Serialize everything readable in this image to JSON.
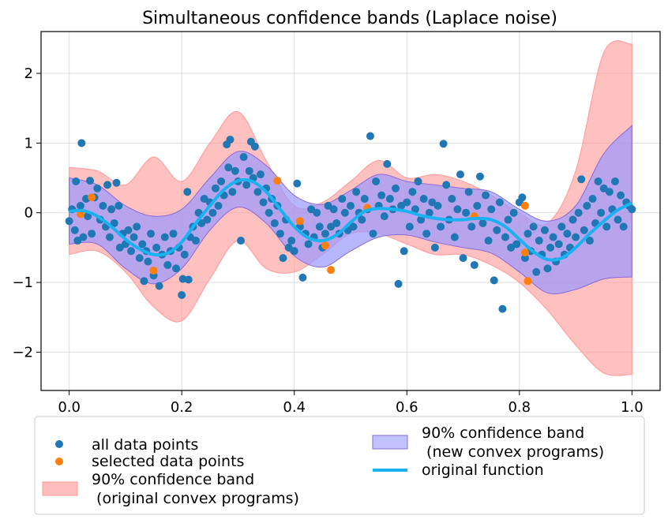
{
  "chart_data": {
    "type": "scatter",
    "title": "Simultaneous confidence bands (Laplace noise)",
    "xlabel": "",
    "ylabel": "",
    "xlim": [
      -0.05,
      1.05
    ],
    "ylim": [
      -2.55,
      2.6
    ],
    "x_ticks": [
      0.0,
      0.2,
      0.4,
      0.6,
      0.8,
      1.0
    ],
    "x_tick_labels": [
      "0.0",
      "0.2",
      "0.4",
      "0.6",
      "0.8",
      "1.0"
    ],
    "y_ticks": [
      -2,
      -1,
      0,
      1,
      2
    ],
    "y_tick_labels": [
      "−2",
      "−1",
      "0",
      "1",
      "2"
    ],
    "grid": true,
    "legend_position": "below",
    "colors": {
      "all_points": "#1f77b4",
      "selected_points": "#ff7f0e",
      "band_original": "#ff9999",
      "band_new": "#9999ff",
      "function": "#1ab2f0"
    },
    "legend": {
      "all_points": "all data points",
      "selected_points": "selected data points",
      "band_original_line1": "90% confidence band",
      "band_original_line2": " (original convex programs)",
      "band_new_line1": "90% confidence band",
      "band_new_line2": " (new convex programs)",
      "function": "original function"
    },
    "series": [
      {
        "name": "original function",
        "x": [
          0.0,
          0.025,
          0.05,
          0.075,
          0.1,
          0.125,
          0.15,
          0.175,
          0.2,
          0.225,
          0.25,
          0.275,
          0.3,
          0.325,
          0.35,
          0.375,
          0.4,
          0.425,
          0.45,
          0.475,
          0.5,
          0.525,
          0.55,
          0.575,
          0.6,
          0.625,
          0.65,
          0.675,
          0.7,
          0.725,
          0.75,
          0.775,
          0.8,
          0.825,
          0.85,
          0.875,
          0.9,
          0.925,
          0.95,
          0.975,
          1.0
        ],
        "y": [
          0.02,
          0.03,
          -0.05,
          -0.2,
          -0.38,
          -0.52,
          -0.6,
          -0.58,
          -0.42,
          -0.15,
          0.1,
          0.33,
          0.46,
          0.45,
          0.3,
          0.05,
          -0.2,
          -0.36,
          -0.4,
          -0.32,
          -0.14,
          0.02,
          0.06,
          0.05,
          0.02,
          -0.04,
          -0.08,
          -0.1,
          -0.1,
          -0.08,
          -0.1,
          -0.2,
          -0.38,
          -0.56,
          -0.67,
          -0.65,
          -0.5,
          -0.3,
          -0.12,
          0.04,
          0.14
        ]
      },
      {
        "name": "90% confidence band (original convex programs)",
        "x": [
          0.0,
          0.05,
          0.1,
          0.15,
          0.2,
          0.25,
          0.3,
          0.35,
          0.4,
          0.45,
          0.5,
          0.55,
          0.6,
          0.65,
          0.7,
          0.75,
          0.8,
          0.85,
          0.9,
          0.95,
          1.0
        ],
        "upper": [
          0.65,
          0.6,
          0.4,
          0.8,
          0.45,
          1.0,
          1.45,
          0.75,
          0.1,
          0.15,
          0.45,
          0.75,
          0.5,
          0.55,
          0.45,
          0.25,
          0.0,
          -0.15,
          0.6,
          2.3,
          2.42
        ],
        "lower": [
          -0.6,
          -0.55,
          -0.85,
          -1.35,
          -1.55,
          -0.95,
          -0.4,
          -0.8,
          -0.85,
          -0.6,
          -0.3,
          -0.3,
          -0.45,
          -0.6,
          -0.6,
          -0.75,
          -1.0,
          -1.4,
          -1.9,
          -2.3,
          -2.32
        ]
      },
      {
        "name": "90% confidence band (new convex programs)",
        "x": [
          0.0,
          0.05,
          0.1,
          0.15,
          0.2,
          0.25,
          0.3,
          0.35,
          0.4,
          0.45,
          0.5,
          0.55,
          0.6,
          0.65,
          0.7,
          0.75,
          0.8,
          0.85,
          0.9,
          0.95,
          1.0
        ],
        "upper": [
          0.5,
          0.4,
          0.1,
          -0.05,
          0.05,
          0.5,
          0.88,
          0.68,
          0.25,
          0.12,
          0.32,
          0.55,
          0.45,
          0.4,
          0.35,
          0.3,
          0.05,
          -0.12,
          0.1,
          0.85,
          1.25
        ],
        "lower": [
          -0.45,
          -0.45,
          -0.8,
          -1.02,
          -0.8,
          -0.25,
          0.08,
          -0.15,
          -0.62,
          -0.78,
          -0.55,
          -0.35,
          -0.32,
          -0.42,
          -0.5,
          -0.58,
          -0.85,
          -1.15,
          -1.1,
          -0.95,
          -0.92
        ]
      }
    ],
    "points_all": [
      [
        0.0,
        -0.12
      ],
      [
        0.005,
        0.05
      ],
      [
        0.01,
        -0.25
      ],
      [
        0.012,
        0.45
      ],
      [
        0.015,
        -0.4
      ],
      [
        0.02,
        0.1
      ],
      [
        0.022,
        1.0
      ],
      [
        0.025,
        -0.35
      ],
      [
        0.03,
        0.2
      ],
      [
        0.033,
        -0.05
      ],
      [
        0.037,
        0.46
      ],
      [
        0.04,
        -0.3
      ],
      [
        0.045,
        0.22
      ],
      [
        0.05,
        0.35
      ],
      [
        0.055,
        -0.1
      ],
      [
        0.06,
        0.1
      ],
      [
        0.065,
        -0.2
      ],
      [
        0.068,
        0.4
      ],
      [
        0.072,
        -0.35
      ],
      [
        0.075,
        0.05
      ],
      [
        0.08,
        -0.15
      ],
      [
        0.084,
        0.43
      ],
      [
        0.088,
        0.1
      ],
      [
        0.09,
        -0.5
      ],
      [
        0.095,
        -0.3
      ],
      [
        0.1,
        -0.45
      ],
      [
        0.105,
        -0.25
      ],
      [
        0.11,
        -0.55
      ],
      [
        0.115,
        -0.35
      ],
      [
        0.12,
        -0.2
      ],
      [
        0.125,
        -0.65
      ],
      [
        0.13,
        -0.45
      ],
      [
        0.133,
        -0.98
      ],
      [
        0.137,
        -0.55
      ],
      [
        0.14,
        -0.7
      ],
      [
        0.145,
        -0.3
      ],
      [
        0.15,
        -0.9
      ],
      [
        0.155,
        -0.5
      ],
      [
        0.16,
        -1.05
      ],
      [
        0.165,
        -0.6
      ],
      [
        0.17,
        -0.35
      ],
      [
        0.175,
        -0.75
      ],
      [
        0.18,
        -0.55
      ],
      [
        0.185,
        -0.3
      ],
      [
        0.19,
        -0.8
      ],
      [
        0.195,
        -0.5
      ],
      [
        0.2,
        -1.18
      ],
      [
        0.202,
        -0.95
      ],
      [
        0.205,
        -0.6
      ],
      [
        0.21,
        0.3
      ],
      [
        0.212,
        -0.96
      ],
      [
        0.215,
        -0.35
      ],
      [
        0.22,
        -0.2
      ],
      [
        0.225,
        -0.4
      ],
      [
        0.23,
        0.0
      ],
      [
        0.235,
        -0.15
      ],
      [
        0.24,
        0.2
      ],
      [
        0.245,
        -0.1
      ],
      [
        0.25,
        0.15
      ],
      [
        0.255,
        0.0
      ],
      [
        0.26,
        0.35
      ],
      [
        0.265,
        0.1
      ],
      [
        0.27,
        0.45
      ],
      [
        0.275,
        0.25
      ],
      [
        0.28,
        0.98
      ],
      [
        0.283,
        0.65
      ],
      [
        0.286,
        1.05
      ],
      [
        0.29,
        0.3
      ],
      [
        0.295,
        0.6
      ],
      [
        0.3,
        0.45
      ],
      [
        0.305,
        -0.4
      ],
      [
        0.31,
        0.8
      ],
      [
        0.315,
        0.4
      ],
      [
        0.32,
        0.6
      ],
      [
        0.323,
        1.02
      ],
      [
        0.327,
        0.5
      ],
      [
        0.33,
        0.95
      ],
      [
        0.335,
        0.3
      ],
      [
        0.34,
        0.55
      ],
      [
        0.345,
        0.15
      ],
      [
        0.35,
        0.35
      ],
      [
        0.355,
        0.0
      ],
      [
        0.36,
        0.2
      ],
      [
        0.365,
        -0.15
      ],
      [
        0.37,
        0.1
      ],
      [
        0.375,
        -0.3
      ],
      [
        0.38,
        -0.65
      ],
      [
        0.385,
        -0.1
      ],
      [
        0.39,
        -0.5
      ],
      [
        0.395,
        -0.4
      ],
      [
        0.4,
        -0.55
      ],
      [
        0.405,
        0.42
      ],
      [
        0.41,
        -0.2
      ],
      [
        0.415,
        -0.93
      ],
      [
        0.42,
        -0.3
      ],
      [
        0.425,
        -0.45
      ],
      [
        0.43,
        0.05
      ],
      [
        0.435,
        -0.35
      ],
      [
        0.44,
        0.0
      ],
      [
        0.445,
        -0.2
      ],
      [
        0.45,
        -0.5
      ],
      [
        0.455,
        -0.3
      ],
      [
        0.46,
        0.1
      ],
      [
        0.465,
        -0.2
      ],
      [
        0.47,
        0.05
      ],
      [
        0.475,
        -0.15
      ],
      [
        0.48,
        -0.3
      ],
      [
        0.485,
        0.2
      ],
      [
        0.49,
        0.0
      ],
      [
        0.495,
        -0.25
      ],
      [
        0.5,
        0.1
      ],
      [
        0.505,
        -0.2
      ],
      [
        0.51,
        0.3
      ],
      [
        0.515,
        0.0
      ],
      [
        0.52,
        -0.1
      ],
      [
        0.525,
        0.2
      ],
      [
        0.53,
        0.05
      ],
      [
        0.535,
        1.1
      ],
      [
        0.54,
        -0.3
      ],
      [
        0.545,
        0.45
      ],
      [
        0.55,
        0.1
      ],
      [
        0.555,
        0.25
      ],
      [
        0.56,
        -0.05
      ],
      [
        0.565,
        0.7
      ],
      [
        0.57,
        0.2
      ],
      [
        0.575,
        0.05
      ],
      [
        0.58,
        0.35
      ],
      [
        0.585,
        -1.02
      ],
      [
        0.59,
        0.1
      ],
      [
        0.595,
        -0.55
      ],
      [
        0.6,
        0.15
      ],
      [
        0.605,
        -0.2
      ],
      [
        0.61,
        0.3
      ],
      [
        0.615,
        0.05
      ],
      [
        0.62,
        0.45
      ],
      [
        0.625,
        -0.1
      ],
      [
        0.63,
        0.2
      ],
      [
        0.635,
        -0.3
      ],
      [
        0.64,
        0.0
      ],
      [
        0.645,
        0.15
      ],
      [
        0.65,
        -0.5
      ],
      [
        0.655,
        0.1
      ],
      [
        0.66,
        -0.2
      ],
      [
        0.665,
        0.99
      ],
      [
        0.67,
        0.4
      ],
      [
        0.675,
        -0.1
      ],
      [
        0.68,
        0.2
      ],
      [
        0.685,
        -0.35
      ],
      [
        0.69,
        0.05
      ],
      [
        0.695,
        0.55
      ],
      [
        0.7,
        -0.65
      ],
      [
        0.705,
        0.0
      ],
      [
        0.71,
        0.3
      ],
      [
        0.715,
        -0.2
      ],
      [
        0.72,
        -0.75
      ],
      [
        0.725,
        0.1
      ],
      [
        0.73,
        0.52
      ],
      [
        0.735,
        -0.15
      ],
      [
        0.74,
        0.25
      ],
      [
        0.745,
        -0.4
      ],
      [
        0.75,
        0.05
      ],
      [
        0.755,
        -0.97
      ],
      [
        0.76,
        -0.25
      ],
      [
        0.765,
        0.15
      ],
      [
        0.77,
        -1.38
      ],
      [
        0.775,
        -0.35
      ],
      [
        0.78,
        -0.1
      ],
      [
        0.785,
        -0.5
      ],
      [
        0.79,
        0.0
      ],
      [
        0.795,
        -0.45
      ],
      [
        0.8,
        0.15
      ],
      [
        0.805,
        0.22
      ],
      [
        0.81,
        -0.65
      ],
      [
        0.815,
        -0.3
      ],
      [
        0.82,
        -0.55
      ],
      [
        0.825,
        -0.2
      ],
      [
        0.83,
        -0.85
      ],
      [
        0.835,
        -0.4
      ],
      [
        0.84,
        -0.6
      ],
      [
        0.845,
        -0.25
      ],
      [
        0.85,
        -0.8
      ],
      [
        0.855,
        -0.5
      ],
      [
        0.86,
        -0.35
      ],
      [
        0.865,
        -0.7
      ],
      [
        0.87,
        -0.45
      ],
      [
        0.875,
        -0.2
      ],
      [
        0.88,
        -0.6
      ],
      [
        0.885,
        -0.3
      ],
      [
        0.89,
        -0.5
      ],
      [
        0.895,
        -0.1
      ],
      [
        0.9,
        -0.35
      ],
      [
        0.905,
        0.0
      ],
      [
        0.91,
        0.48
      ],
      [
        0.915,
        -0.25
      ],
      [
        0.92,
        0.1
      ],
      [
        0.925,
        -0.4
      ],
      [
        0.93,
        0.2
      ],
      [
        0.935,
        -0.15
      ],
      [
        0.94,
        0.45
      ],
      [
        0.945,
        0.0
      ],
      [
        0.95,
        0.35
      ],
      [
        0.955,
        -0.2
      ],
      [
        0.96,
        0.3
      ],
      [
        0.965,
        0.05
      ],
      [
        0.97,
        0.45
      ],
      [
        0.975,
        -0.1
      ],
      [
        0.98,
        0.25
      ],
      [
        0.985,
        -0.2
      ],
      [
        0.99,
        0.15
      ],
      [
        0.995,
        0.1
      ],
      [
        1.0,
        0.05
      ]
    ],
    "points_selected": [
      [
        0.02,
        -0.02
      ],
      [
        0.04,
        0.22
      ],
      [
        0.15,
        -0.83
      ],
      [
        0.37,
        0.46
      ],
      [
        0.41,
        -0.12
      ],
      [
        0.455,
        -0.47
      ],
      [
        0.465,
        -0.82
      ],
      [
        0.53,
        0.07
      ],
      [
        0.72,
        -0.05
      ],
      [
        0.81,
        -0.57
      ],
      [
        0.81,
        0.1
      ],
      [
        0.815,
        -0.98
      ]
    ]
  }
}
